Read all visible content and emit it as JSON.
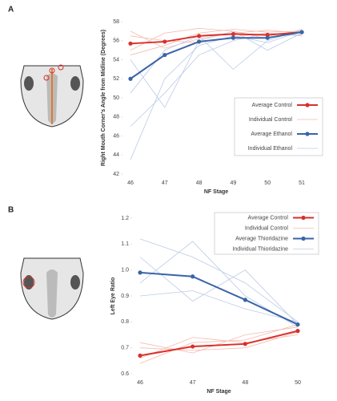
{
  "chart_data": [
    {
      "type": "line",
      "panel": "A",
      "xlabel": "NF Stage",
      "ylabel": "Right Mouth Corner's Angle from Midline (Degrees)",
      "categories": [
        "46",
        "47",
        "48",
        "49",
        "50",
        "51"
      ],
      "ylim": [
        42,
        58
      ],
      "yticks": [
        42,
        44,
        46,
        48,
        50,
        52,
        54,
        56,
        58
      ],
      "series": [
        {
          "name": "Average Control",
          "color": "#d9302b",
          "values": [
            55.7,
            55.9,
            56.5,
            56.7,
            56.6,
            56.9
          ]
        },
        {
          "name": "Individual Control",
          "color": "#f4bcae",
          "lines": [
            [
              54.5,
              55.5,
              56.8,
              57.2,
              56.9,
              57.0
            ],
            [
              56.5,
              56.0,
              55.8,
              56.4,
              56.8,
              56.6
            ],
            [
              55.0,
              56.8,
              57.3,
              57.0,
              56.2,
              57.2
            ],
            [
              57.0,
              55.2,
              56.2,
              56.8,
              57.1,
              56.8
            ]
          ]
        },
        {
          "name": "Average Ethanol",
          "color": "#3a64a8",
          "values": [
            52.0,
            54.5,
            55.9,
            56.3,
            56.3,
            56.9
          ]
        },
        {
          "name": "Individual Ethanol",
          "color": "#bccbe6",
          "lines": [
            [
              43.5,
              52.0,
              55.5,
              56.5,
              55.8,
              57.0
            ],
            [
              47.0,
              50.5,
              54.5,
              56.0,
              56.8,
              56.5
            ],
            [
              50.5,
              55.0,
              56.5,
              53.0,
              56.0,
              57.2
            ],
            [
              54.0,
              49.0,
              56.0,
              57.0,
              55.0,
              56.8
            ]
          ]
        }
      ]
    },
    {
      "type": "line",
      "panel": "B",
      "xlabel": "NF Stage",
      "ylabel": "Left Eye Ratio",
      "categories": [
        "46",
        "47",
        "48",
        "50"
      ],
      "ylim": [
        0.6,
        1.2
      ],
      "yticks": [
        0.6,
        0.7,
        0.8,
        0.9,
        {
          "value": 1,
          "label": "1.0"
        },
        1.1,
        1.2
      ],
      "series": [
        {
          "name": "Average Control",
          "color": "#d9302b",
          "values": [
            0.67,
            0.705,
            0.715,
            0.765
          ]
        },
        {
          "name": "Individual Control",
          "color": "#f4bcae",
          "lines": [
            [
              0.64,
              0.72,
              0.73,
              0.79
            ],
            [
              0.7,
              0.69,
              0.7,
              0.76
            ],
            [
              0.66,
              0.74,
              0.72,
              0.75
            ],
            [
              0.72,
              0.68,
              0.75,
              0.78
            ]
          ]
        },
        {
          "name": "Average Thioridazine",
          "color": "#3a64a8",
          "values": [
            0.99,
            0.975,
            0.885,
            0.79
          ]
        },
        {
          "name": "Individual Thioridazine",
          "color": "#bccbe6",
          "lines": [
            [
              1.12,
              1.05,
              0.95,
              0.8
            ],
            [
              0.95,
              1.11,
              0.9,
              0.78
            ],
            [
              0.9,
              0.92,
              0.85,
              0.8
            ],
            [
              1.05,
              0.88,
              1.0,
              0.79
            ]
          ]
        }
      ]
    }
  ]
}
